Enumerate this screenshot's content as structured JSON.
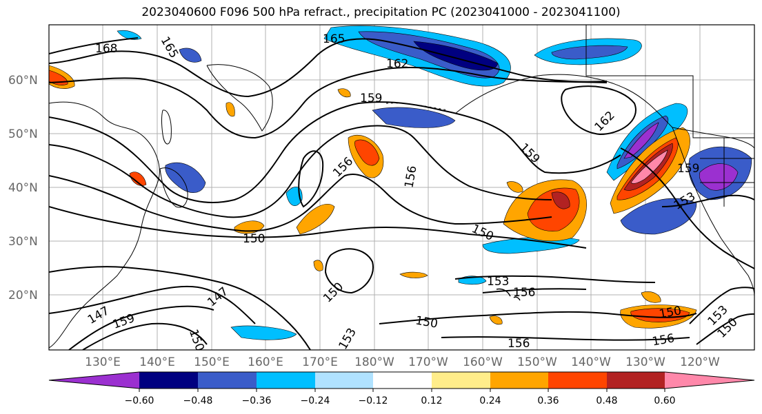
{
  "title": "2023040600 F096 500 hPa refract., precipitation PC (2023041000 - 2023041100)",
  "map": {
    "lat_labels": [
      "60°N",
      "50°N",
      "40°N",
      "30°N",
      "20°N"
    ],
    "lon_labels": [
      "130°E",
      "140°E",
      "150°E",
      "160°E",
      "170°E",
      "180°W",
      "170°W",
      "160°W",
      "150°W",
      "140°W",
      "130°W",
      "120°W"
    ],
    "contour_labels": [
      "168",
      "165",
      "165",
      "162",
      "159",
      "162",
      "159",
      "156",
      "156",
      "159",
      "153",
      "150",
      "150",
      "153",
      "156",
      "150",
      "147",
      "147",
      "159",
      "150",
      "150",
      "153",
      "156",
      "156",
      "150",
      "153",
      "150"
    ]
  },
  "colorbar": {
    "colors": [
      "#9b30d0",
      "#000080",
      "#3a5cc9",
      "#00bfff",
      "#b0e2ff",
      "#ffffff",
      "#ffed8a",
      "#ffa500",
      "#ff4500",
      "#b22222",
      "#ff88aa"
    ],
    "tick_labels": [
      "−0.60",
      "−0.48",
      "−0.36",
      "−0.24",
      "−0.12",
      "0.12",
      "0.24",
      "0.36",
      "0.48",
      "0.60"
    ]
  }
}
